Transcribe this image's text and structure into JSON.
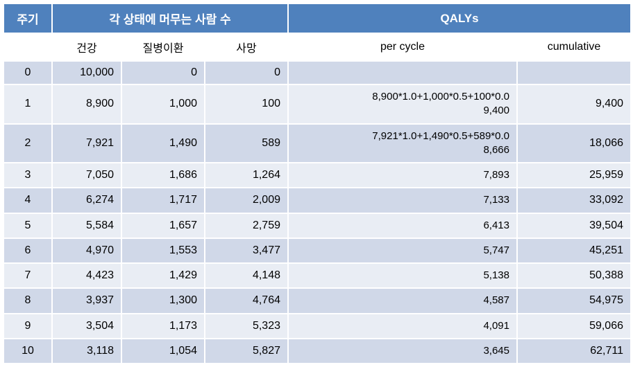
{
  "header": {
    "cycle": "주기",
    "states": "각 상태에 머무는 사람 수",
    "qalys": "QALYs"
  },
  "subheader": {
    "healthy": "건강",
    "disease": "질병이환",
    "dead": "사망",
    "percycle": "per cycle",
    "cumulative": "cumulative"
  },
  "rows": [
    {
      "cycle": "0",
      "healthy": "10,000",
      "disease": "0",
      "dead": "0",
      "percycle": "",
      "cumulative": ""
    },
    {
      "cycle": "1",
      "healthy": "8,900",
      "disease": "1,000",
      "dead": "100",
      "percycle": "8,900*1.0+1,000*0.5+100*0.0\n9,400",
      "cumulative": "9,400"
    },
    {
      "cycle": "2",
      "healthy": "7,921",
      "disease": "1,490",
      "dead": "589",
      "percycle": "7,921*1.0+1,490*0.5+589*0.0\n8,666",
      "cumulative": "18,066"
    },
    {
      "cycle": "3",
      "healthy": "7,050",
      "disease": "1,686",
      "dead": "1,264",
      "percycle": "7,893",
      "cumulative": "25,959"
    },
    {
      "cycle": "4",
      "healthy": "6,274",
      "disease": "1,717",
      "dead": "2,009",
      "percycle": "7,133",
      "cumulative": "33,092"
    },
    {
      "cycle": "5",
      "healthy": "5,584",
      "disease": "1,657",
      "dead": "2,759",
      "percycle": "6,413",
      "cumulative": "39,504"
    },
    {
      "cycle": "6",
      "healthy": "4,970",
      "disease": "1,553",
      "dead": "3,477",
      "percycle": "5,747",
      "cumulative": "45,251"
    },
    {
      "cycle": "7",
      "healthy": "4,423",
      "disease": "1,429",
      "dead": "4,148",
      "percycle": "5,138",
      "cumulative": "50,388"
    },
    {
      "cycle": "8",
      "healthy": "3,937",
      "disease": "1,300",
      "dead": "4,764",
      "percycle": "4,587",
      "cumulative": "54,975"
    },
    {
      "cycle": "9",
      "healthy": "3,504",
      "disease": "1,173",
      "dead": "5,323",
      "percycle": "4,091",
      "cumulative": "59,066"
    },
    {
      "cycle": "10",
      "healthy": "3,118",
      "disease": "1,054",
      "dead": "5,827",
      "percycle": "3,645",
      "cumulative": "62,711"
    }
  ],
  "style": {
    "header_bg": "#4f81bd",
    "header_fg": "#ffffff",
    "row_odd_bg": "#d0d8e8",
    "row_even_bg": "#e9edf4",
    "border_color": "#ffffff",
    "font_size_header": 17,
    "font_size_cell": 16
  }
}
